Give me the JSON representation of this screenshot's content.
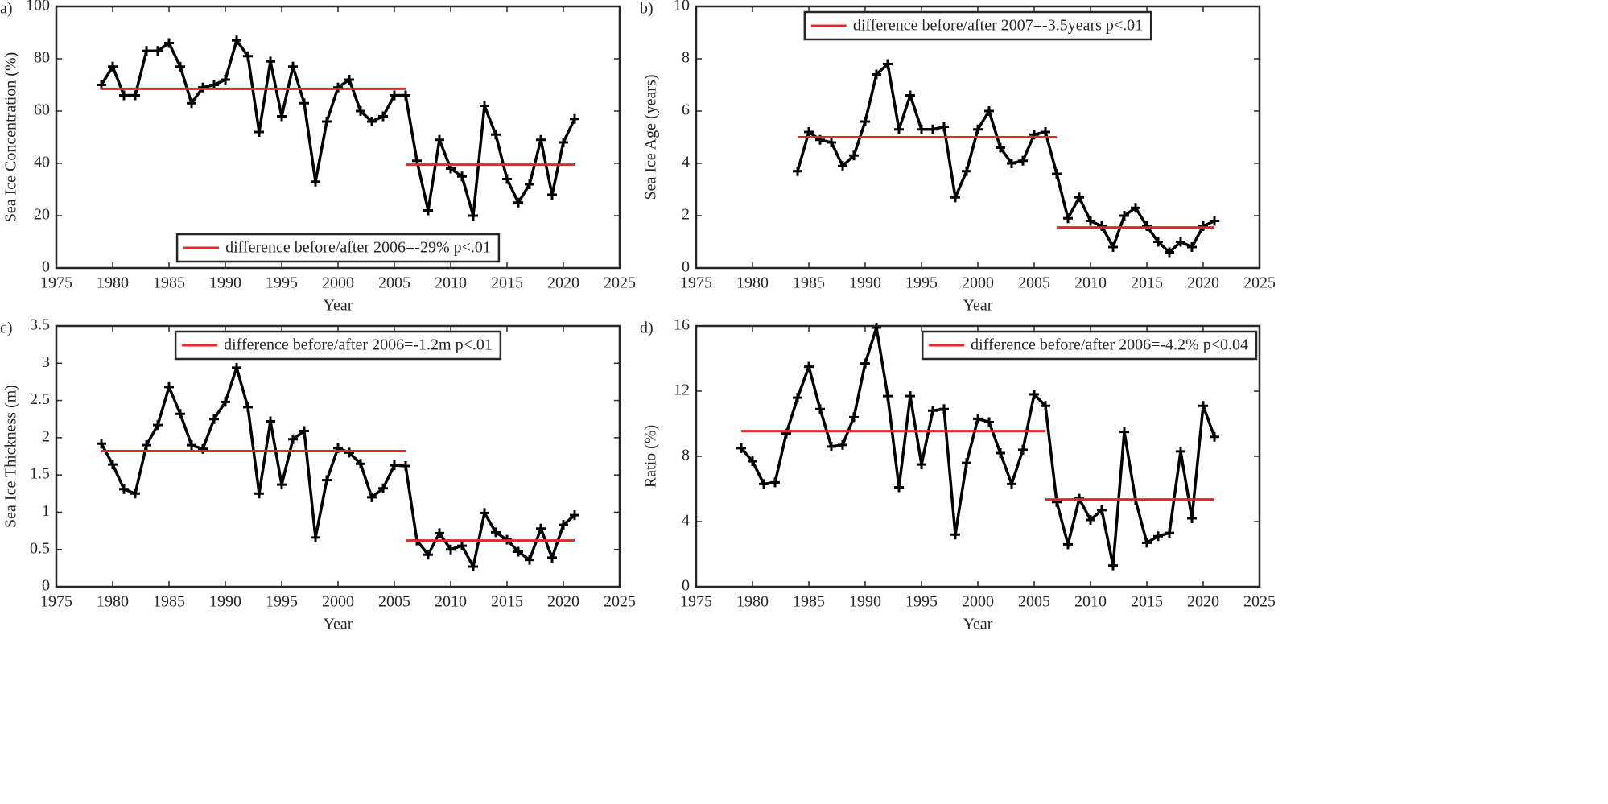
{
  "chart_data": [
    {
      "type": "line",
      "panel_label": "a)",
      "xlabel": "Year",
      "ylabel": "Sea Ice Concentration (%)",
      "xlim": [
        1975,
        2025
      ],
      "xticks": [
        1975,
        1980,
        1985,
        1990,
        1995,
        2000,
        2005,
        2010,
        2015,
        2020,
        2025
      ],
      "ylim": [
        0,
        100
      ],
      "yticks": [
        0,
        20,
        40,
        60,
        80,
        100
      ],
      "legend_position": "lower center",
      "series": [
        {
          "color": "#000000",
          "marker": "+",
          "x": [
            1979,
            1980,
            1981,
            1982,
            1983,
            1984,
            1985,
            1986,
            1987,
            1988,
            1989,
            1990,
            1991,
            1992,
            1993,
            1994,
            1995,
            1996,
            1997,
            1998,
            1999,
            2000,
            2001,
            2002,
            2003,
            2004,
            2005,
            2006,
            2007,
            2008,
            2009,
            2010,
            2011,
            2012,
            2013,
            2014,
            2015,
            2016,
            2017,
            2018,
            2019,
            2020,
            2021
          ],
          "values": [
            70,
            77,
            66,
            66,
            83,
            83,
            86,
            77,
            63,
            69,
            70,
            72,
            87,
            81,
            52,
            79,
            58,
            77,
            63,
            33,
            56,
            69,
            72,
            60,
            56,
            58,
            66,
            66,
            41,
            22,
            49,
            38,
            35,
            20,
            62,
            51,
            34,
            25,
            32,
            49,
            28,
            48,
            57
          ]
        },
        {
          "name": "difference before/after 2006=-29% p<.01",
          "color": "#e8262a",
          "x": [
            1979,
            2006,
            null,
            2006,
            2021
          ],
          "values": [
            68.5,
            68.5,
            null,
            39.5,
            39.5
          ]
        }
      ]
    },
    {
      "type": "line",
      "panel_label": "b)",
      "xlabel": "Year",
      "ylabel": "Sea Ice Age (years)",
      "xlim": [
        1975,
        2025
      ],
      "xticks": [
        1975,
        1980,
        1985,
        1990,
        1995,
        2000,
        2005,
        2010,
        2015,
        2020,
        2025
      ],
      "ylim": [
        0,
        10
      ],
      "yticks": [
        0,
        2,
        4,
        6,
        8,
        10
      ],
      "legend_position": "upper center",
      "series": [
        {
          "color": "#000000",
          "marker": "+",
          "x": [
            1984,
            1985,
            1986,
            1987,
            1988,
            1989,
            1990,
            1991,
            1992,
            1993,
            1994,
            1995,
            1996,
            1997,
            1998,
            1999,
            2000,
            2001,
            2002,
            2003,
            2004,
            2005,
            2006,
            2007,
            2008,
            2009,
            2010,
            2011,
            2012,
            2013,
            2014,
            2015,
            2016,
            2017,
            2018,
            2019,
            2020,
            2021
          ],
          "values": [
            3.7,
            5.2,
            4.9,
            4.8,
            3.9,
            4.3,
            5.6,
            7.4,
            7.8,
            5.3,
            6.6,
            5.3,
            5.3,
            5.4,
            2.7,
            3.7,
            5.3,
            6.0,
            4.6,
            4.0,
            4.1,
            5.1,
            5.2,
            3.6,
            1.9,
            2.7,
            1.8,
            1.6,
            0.8,
            2.0,
            2.3,
            1.6,
            1.0,
            0.6,
            1.0,
            0.8,
            1.6,
            1.8
          ]
        },
        {
          "name": "difference before/after 2007=-3.5years p<.01",
          "color": "#e8262a",
          "x": [
            1984,
            2007,
            null,
            2007,
            2021
          ],
          "values": [
            5.0,
            5.0,
            null,
            1.55,
            1.55
          ]
        }
      ]
    },
    {
      "type": "line",
      "panel_label": "c)",
      "xlabel": "Year",
      "ylabel": "Sea Ice Thickness (m)",
      "xlim": [
        1975,
        2025
      ],
      "xticks": [
        1975,
        1980,
        1985,
        1990,
        1995,
        2000,
        2005,
        2010,
        2015,
        2020,
        2025
      ],
      "ylim": [
        0,
        3.5
      ],
      "yticks": [
        0,
        0.5,
        1,
        1.5,
        2,
        2.5,
        3,
        3.5
      ],
      "legend_position": "upper center",
      "series": [
        {
          "color": "#000000",
          "marker": "+",
          "x": [
            1979,
            1980,
            1981,
            1982,
            1983,
            1984,
            1985,
            1986,
            1987,
            1988,
            1989,
            1990,
            1991,
            1992,
            1993,
            1994,
            1995,
            1996,
            1997,
            1998,
            1999,
            2000,
            2001,
            2002,
            2003,
            2004,
            2005,
            2006,
            2007,
            2008,
            2009,
            2010,
            2011,
            2012,
            2013,
            2014,
            2015,
            2016,
            2017,
            2018,
            2019,
            2020,
            2021
          ],
          "values": [
            1.92,
            1.64,
            1.31,
            1.25,
            1.9,
            2.17,
            2.68,
            2.32,
            1.9,
            1.85,
            2.25,
            2.48,
            2.94,
            2.41,
            1.25,
            2.22,
            1.37,
            1.98,
            2.09,
            0.66,
            1.43,
            1.86,
            1.8,
            1.65,
            1.2,
            1.32,
            1.63,
            1.62,
            0.62,
            0.43,
            0.72,
            0.5,
            0.55,
            0.27,
            0.99,
            0.73,
            0.63,
            0.47,
            0.36,
            0.78,
            0.39,
            0.83,
            0.96
          ]
        },
        {
          "name": "difference before/after 2006=-1.2m p<.01",
          "color": "#e8262a",
          "x": [
            1979,
            2006,
            null,
            2006,
            2021
          ],
          "values": [
            1.82,
            1.82,
            null,
            0.62,
            0.62
          ]
        }
      ]
    },
    {
      "type": "line",
      "panel_label": "d)",
      "xlabel": "Year",
      "ylabel": "Ratio (%)",
      "xlim": [
        1975,
        2025
      ],
      "xticks": [
        1975,
        1980,
        1985,
        1990,
        1995,
        2000,
        2005,
        2010,
        2015,
        2020,
        2025
      ],
      "ylim": [
        0,
        16
      ],
      "yticks": [
        0,
        4,
        8,
        12,
        16
      ],
      "legend_position": "upper right",
      "series": [
        {
          "color": "#000000",
          "marker": "+",
          "x": [
            1979,
            1980,
            1981,
            1982,
            1983,
            1984,
            1985,
            1986,
            1987,
            1988,
            1989,
            1990,
            1991,
            1992,
            1993,
            1994,
            1995,
            1996,
            1997,
            1998,
            1999,
            2000,
            2001,
            2002,
            2003,
            2004,
            2005,
            2006,
            2007,
            2008,
            2009,
            2010,
            2011,
            2012,
            2013,
            2014,
            2015,
            2016,
            2017,
            2018,
            2019,
            2020,
            2021
          ],
          "values": [
            8.5,
            7.7,
            6.3,
            6.4,
            9.4,
            11.6,
            13.5,
            10.9,
            8.6,
            8.7,
            10.4,
            13.7,
            15.9,
            11.7,
            6.1,
            11.7,
            7.5,
            10.8,
            10.9,
            3.2,
            7.6,
            10.3,
            10.1,
            8.2,
            6.3,
            8.4,
            11.8,
            11.1,
            5.2,
            2.6,
            5.4,
            4.1,
            4.7,
            1.3,
            9.5,
            5.3,
            2.7,
            3.1,
            3.3,
            8.3,
            4.2,
            11.1,
            9.2
          ]
        },
        {
          "name": "difference before/after 2006=-4.2% p<0.04",
          "color": "#e8262a",
          "x": [
            1979,
            2006,
            null,
            2006,
            2021
          ],
          "values": [
            9.55,
            9.55,
            null,
            5.35,
            5.35
          ]
        }
      ]
    }
  ]
}
